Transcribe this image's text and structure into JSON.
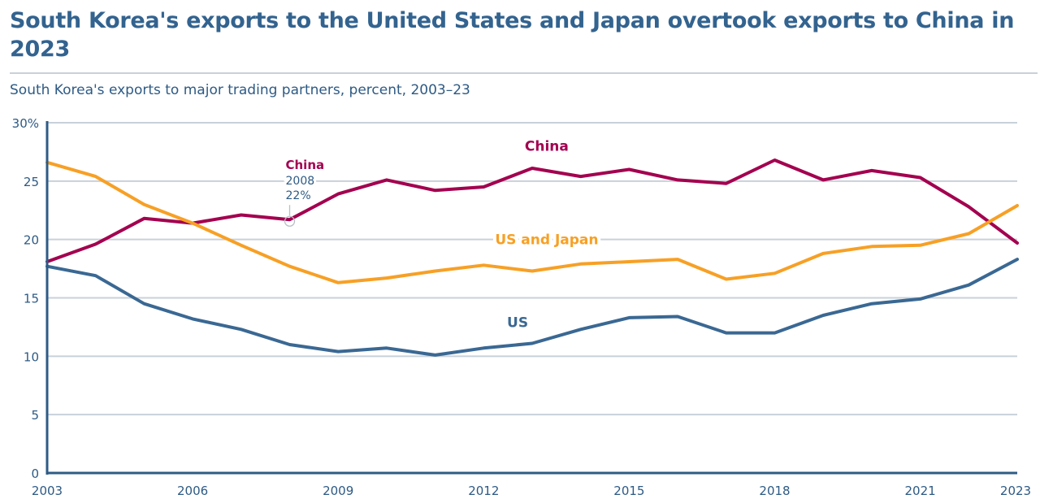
{
  "header": {
    "title": "South Korea's exports to the United States and Japan overtook exports to China in 2023",
    "subtitle": "South Korea's exports to major trading partners, percent, 2003–23"
  },
  "chart_data": {
    "type": "line",
    "title": "South Korea's exports to the United States and Japan overtook exports to China in 2023",
    "subtitle": "South Korea's exports to major trading partners, percent, 2003–23",
    "xlabel": "",
    "ylabel": "",
    "x": [
      2003,
      2004,
      2005,
      2006,
      2007,
      2008,
      2009,
      2010,
      2011,
      2012,
      2013,
      2014,
      2015,
      2016,
      2017,
      2018,
      2019,
      2020,
      2021,
      2022,
      2023
    ],
    "xlim": [
      2003,
      2023
    ],
    "ylim": [
      0,
      30
    ],
    "grid": true,
    "legend": "inline-labels",
    "x_ticks": [
      "2003",
      "2006",
      "2009",
      "2012",
      "2015",
      "2018",
      "2021",
      "2023"
    ],
    "x_tick_values": [
      2003,
      2006,
      2009,
      2012,
      2015,
      2018,
      2021,
      2023
    ],
    "y_ticks": [
      "0",
      "5",
      "10",
      "15",
      "20",
      "25",
      "30%"
    ],
    "y_tick_values": [
      0,
      5,
      10,
      15,
      20,
      25,
      30
    ],
    "series": [
      {
        "name": "China",
        "label": "China",
        "color": "#a3004f",
        "values": [
          18.1,
          19.6,
          21.8,
          21.4,
          22.1,
          21.7,
          23.9,
          25.1,
          24.2,
          24.5,
          26.1,
          25.4,
          26.0,
          25.1,
          24.8,
          26.8,
          25.1,
          25.9,
          25.3,
          22.8,
          19.7
        ]
      },
      {
        "name": "US and Japan",
        "label": "US and Japan",
        "color": "#f7a025",
        "values": [
          26.6,
          25.4,
          23.0,
          21.4,
          19.5,
          17.7,
          16.3,
          16.7,
          17.3,
          17.8,
          17.3,
          17.9,
          18.1,
          18.3,
          16.6,
          17.1,
          18.8,
          19.4,
          19.5,
          20.5,
          22.9
        ]
      },
      {
        "name": "US",
        "label": "US",
        "color": "#3a6893",
        "values": [
          17.7,
          16.9,
          14.5,
          13.2,
          12.3,
          11.0,
          10.4,
          10.7,
          10.1,
          10.7,
          11.1,
          12.3,
          13.3,
          13.4,
          12.0,
          12.0,
          13.5,
          14.5,
          14.9,
          16.1,
          18.3
        ]
      }
    ],
    "annotations": [
      {
        "series": "China",
        "x": 2008,
        "label": "China",
        "line1": "2008",
        "line2": "22%"
      }
    ],
    "series_label_positions": [
      {
        "series": "China",
        "x": 2013.3,
        "y": 28.0
      },
      {
        "series": "US and Japan",
        "x": 2013.3,
        "y": 20.0
      },
      {
        "series": "US",
        "x": 2012.7,
        "y": 12.9
      }
    ]
  }
}
